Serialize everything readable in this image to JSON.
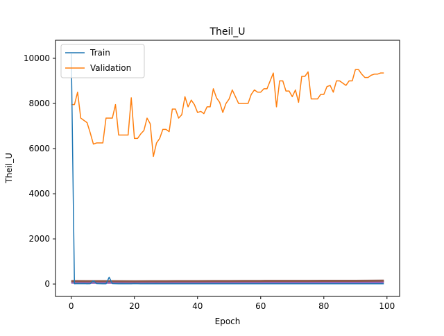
{
  "chart_data": {
    "type": "line",
    "title": "Theil_U",
    "xlabel": "Epoch",
    "ylabel": "Theil_U",
    "xlim": [
      -5,
      104
    ],
    "ylim": [
      -550,
      10800
    ],
    "xticks": [
      0,
      20,
      40,
      60,
      80,
      100
    ],
    "yticks": [
      0,
      2000,
      4000,
      6000,
      8000,
      10000
    ],
    "grid": false,
    "legend_position": "top-left",
    "series": [
      {
        "name": "Train",
        "color": "#1f77b4",
        "x": [
          0,
          1,
          2,
          3,
          4,
          5,
          6,
          7,
          8,
          9,
          10,
          11,
          12,
          13,
          14,
          15,
          16,
          17,
          18,
          19,
          20,
          21,
          22,
          23,
          24,
          25,
          26,
          27,
          28,
          29,
          30,
          31,
          32,
          33,
          34,
          35,
          36,
          37,
          38,
          39,
          40,
          41,
          42,
          43,
          44,
          45,
          46,
          47,
          48,
          49,
          50,
          51,
          52,
          53,
          54,
          55,
          56,
          57,
          58,
          59,
          60,
          61,
          62,
          63,
          64,
          65,
          66,
          67,
          68,
          69,
          70,
          71,
          72,
          73,
          74,
          75,
          76,
          77,
          78,
          79,
          80,
          81,
          82,
          83,
          84,
          85,
          86,
          87,
          88,
          89,
          90,
          91,
          92,
          93,
          94,
          95,
          96,
          97,
          98,
          99
        ],
        "values": [
          10200,
          10,
          20,
          15,
          18,
          12,
          15,
          150,
          20,
          15,
          12,
          10,
          300,
          20,
          15,
          12,
          15,
          10,
          12,
          10,
          20,
          15,
          12,
          10,
          15,
          12,
          10,
          15,
          12,
          10,
          10,
          12,
          10,
          10,
          10,
          12,
          10,
          10,
          10,
          10,
          10,
          12,
          10,
          10,
          10,
          10,
          10,
          10,
          10,
          10,
          10,
          10,
          10,
          10,
          10,
          10,
          10,
          10,
          10,
          10,
          10,
          10,
          10,
          10,
          10,
          10,
          10,
          10,
          10,
          10,
          10,
          10,
          10,
          10,
          10,
          10,
          10,
          10,
          10,
          10,
          10,
          10,
          10,
          10,
          10,
          10,
          10,
          10,
          10,
          10,
          10,
          10,
          10,
          10,
          10,
          10,
          10,
          10,
          10,
          10
        ]
      },
      {
        "name": "Validation",
        "color": "#ff7f0e",
        "x": [
          0,
          1,
          2,
          3,
          4,
          5,
          6,
          7,
          8,
          9,
          10,
          11,
          12,
          13,
          14,
          15,
          16,
          17,
          18,
          19,
          20,
          21,
          22,
          23,
          24,
          25,
          26,
          27,
          28,
          29,
          30,
          31,
          32,
          33,
          34,
          35,
          36,
          37,
          38,
          39,
          40,
          41,
          42,
          43,
          44,
          45,
          46,
          47,
          48,
          49,
          50,
          51,
          52,
          53,
          54,
          55,
          56,
          57,
          58,
          59,
          60,
          61,
          62,
          63,
          64,
          65,
          66,
          67,
          68,
          69,
          70,
          71,
          72,
          73,
          74,
          75,
          76,
          77,
          78,
          79,
          80,
          81,
          82,
          83,
          84,
          85,
          86,
          87,
          88,
          89,
          90,
          91,
          92,
          93,
          94,
          95,
          96,
          97,
          98,
          99
        ],
        "values": [
          7950,
          7950,
          8500,
          7350,
          7250,
          7150,
          6700,
          6200,
          6250,
          6250,
          6250,
          7350,
          7350,
          7350,
          7950,
          6600,
          6600,
          6600,
          6600,
          8250,
          6450,
          6450,
          6650,
          6800,
          7350,
          7100,
          5650,
          6250,
          6450,
          6850,
          6850,
          6750,
          7750,
          7750,
          7350,
          7500,
          8300,
          7850,
          8150,
          7950,
          7600,
          7650,
          7550,
          7850,
          7850,
          8650,
          8250,
          8050,
          7600,
          8000,
          8200,
          8600,
          8300,
          8000,
          8000,
          8000,
          8000,
          8400,
          8600,
          8500,
          8500,
          8650,
          8650,
          9000,
          9350,
          7850,
          9000,
          9000,
          8550,
          8550,
          8300,
          8600,
          8050,
          9200,
          9200,
          9400,
          8200,
          8200,
          8200,
          8400,
          8400,
          8750,
          8800,
          8500,
          9000,
          9000,
          8900,
          8800,
          9000,
          9000,
          9500,
          9500,
          9300,
          9150,
          9150,
          9250,
          9300,
          9300,
          9350,
          9350
        ]
      },
      {
        "color": "#2ca02c",
        "x": [
          0,
          5,
          10,
          15,
          20,
          25,
          30,
          35,
          40,
          45,
          50,
          55,
          60,
          65,
          70,
          75,
          80,
          85,
          90,
          95,
          99
        ],
        "values": [
          90,
          80,
          85,
          80,
          75,
          80,
          78,
          80,
          82,
          80,
          80,
          82,
          80,
          82,
          85,
          82,
          85,
          88,
          90,
          90,
          92
        ]
      },
      {
        "color": "#d62728",
        "x": [
          0,
          5,
          10,
          15,
          20,
          25,
          30,
          35,
          40,
          45,
          50,
          55,
          60,
          65,
          70,
          75,
          80,
          85,
          90,
          95,
          99
        ],
        "values": [
          115,
          105,
          110,
          100,
          95,
          100,
          100,
          105,
          105,
          108,
          110,
          110,
          112,
          115,
          112,
          115,
          118,
          120,
          122,
          125,
          125
        ]
      },
      {
        "color": "#9467bd",
        "x": [
          0,
          5,
          10,
          15,
          20,
          25,
          30,
          35,
          40,
          45,
          50,
          55,
          60,
          65,
          70,
          75,
          80,
          85,
          90,
          95,
          99
        ],
        "values": [
          60,
          55,
          58,
          55,
          52,
          55,
          55,
          56,
          58,
          58,
          60,
          60,
          62,
          62,
          64,
          64,
          65,
          66,
          68,
          68,
          70
        ]
      },
      {
        "color": "#8c564b",
        "x": [
          0,
          5,
          10,
          15,
          20,
          25,
          30,
          35,
          40,
          45,
          50,
          55,
          60,
          65,
          70,
          75,
          80,
          85,
          90,
          95,
          99
        ],
        "values": [
          130,
          125,
          128,
          122,
          120,
          122,
          124,
          126,
          128,
          130,
          132,
          134,
          136,
          138,
          138,
          140,
          142,
          142,
          144,
          146,
          148
        ]
      }
    ]
  }
}
